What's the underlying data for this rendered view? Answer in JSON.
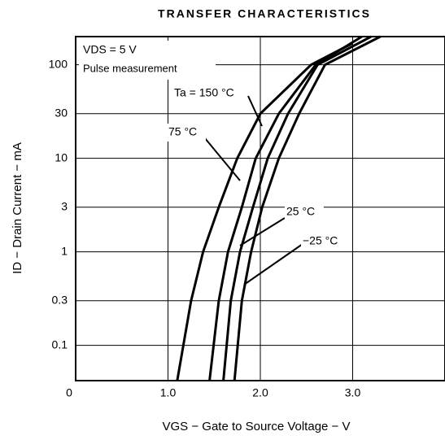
{
  "chart_data": {
    "type": "line",
    "title": "TRANSFER CHARACTERISTICS",
    "x_label": "VGS − Gate to Source Voltage − V",
    "y_label": "ID − Drain Current − mA",
    "annotations": [
      "VDS = 5 V",
      "Pulse measurement"
    ],
    "log_y": true,
    "grid": true,
    "color": "#000000",
    "xlim": [
      0,
      4.0
    ],
    "ylim": [
      0.042,
      200
    ],
    "xticks": [
      0,
      {
        "value": 1,
        "label": "1.0"
      },
      {
        "value": 2,
        "label": "2.0"
      },
      {
        "value": 3,
        "label": "3.0"
      }
    ],
    "yticks": [
      0.1,
      0.3,
      1,
      3,
      10,
      30,
      100
    ],
    "series": [
      {
        "name": "Ta = 150 °C",
        "x": [
          1.1,
          1.25,
          1.38,
          1.55,
          1.75,
          2.0,
          2.55,
          3.0
        ],
        "values": [
          0.042,
          0.3,
          1,
          3,
          10,
          30,
          100,
          170
        ]
      },
      {
        "name": "75 °C",
        "x": [
          1.45,
          1.55,
          1.65,
          1.8,
          1.95,
          2.2,
          2.6,
          3.1
        ],
        "values": [
          0.042,
          0.3,
          1,
          3,
          10,
          30,
          100,
          200
        ]
      },
      {
        "name": "25 °C",
        "x": [
          1.6,
          1.68,
          1.78,
          1.92,
          2.08,
          2.3,
          2.62,
          3.2
        ],
        "values": [
          0.042,
          0.3,
          1,
          3,
          10,
          30,
          100,
          200
        ]
      },
      {
        "name": "−25 °C",
        "x": [
          1.72,
          1.8,
          1.9,
          2.02,
          2.2,
          2.42,
          2.7,
          3.3
        ],
        "values": [
          0.042,
          0.3,
          1,
          3,
          10,
          30,
          100,
          200
        ]
      }
    ]
  }
}
